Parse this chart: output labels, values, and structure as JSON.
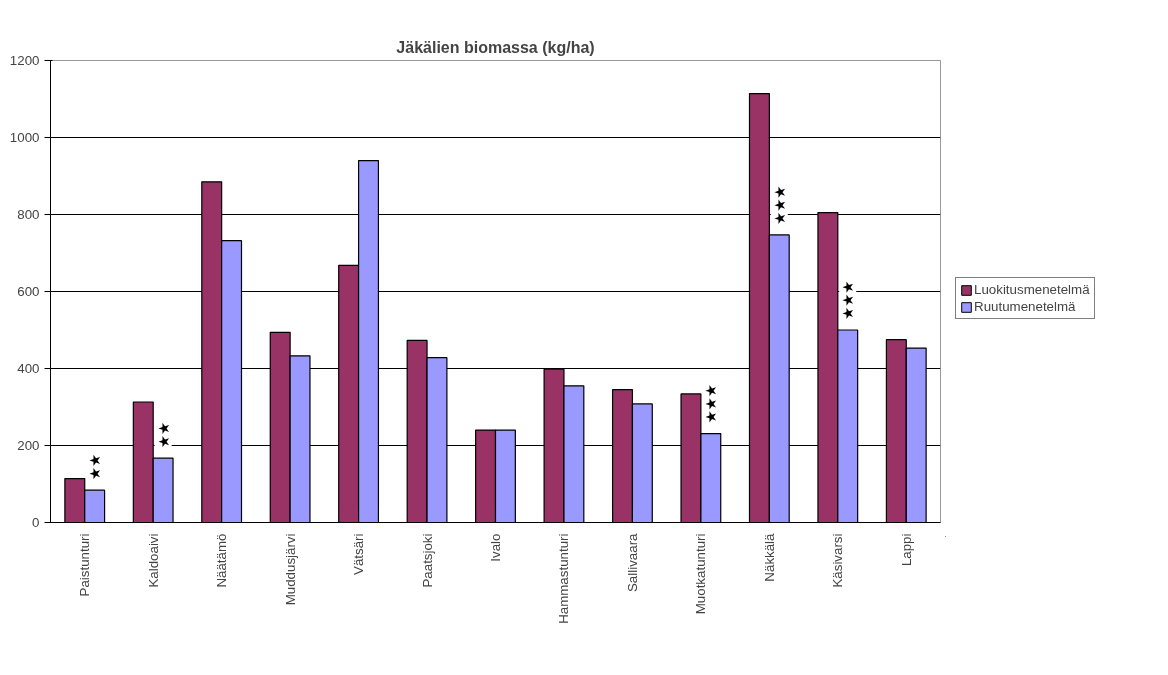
{
  "chart_data": {
    "type": "bar",
    "title": "Jäkälien biomassa (kg/ha)",
    "categories": [
      "Paistunturi",
      "Kaldoaivi",
      "Näätämö",
      "Muddusjärvi",
      "Vätsäri",
      "Paatsjoki",
      "Ivalo",
      "Hammastunturi",
      "Sallivaara",
      "Muotkatunturi",
      "Näkkälä",
      "Käsivarsi",
      "Lappi"
    ],
    "series": [
      {
        "name": "Luokitusmenetelmä",
        "color": "#993366",
        "values": [
          114,
          313,
          885,
          494,
          668,
          473,
          240,
          398,
          345,
          334,
          1114,
          805,
          475
        ]
      },
      {
        "name": "Ruutumenetelmä",
        "color": "#9999ff",
        "values": [
          84,
          167,
          732,
          433,
          940,
          428,
          240,
          355,
          308,
          231,
          747,
          500,
          453
        ]
      }
    ],
    "ylim": [
      0,
      1200
    ],
    "yticks": [
      0,
      200,
      400,
      600,
      800,
      1000,
      1200
    ],
    "grid": "y",
    "legend": "right",
    "annotations": [
      {
        "text": "★★",
        "x": "Paistunturi",
        "y": 84
      },
      {
        "text": "★★",
        "x": "Kaldoaivi",
        "y": 167
      },
      {
        "text": "★★★",
        "x": "Muotkatunturi",
        "y": 231
      },
      {
        "text": "★★★",
        "x": "Näkkälä",
        "y": 747
      },
      {
        "text": "★★★",
        "x": "Käsivarsi",
        "y": 500
      }
    ]
  }
}
